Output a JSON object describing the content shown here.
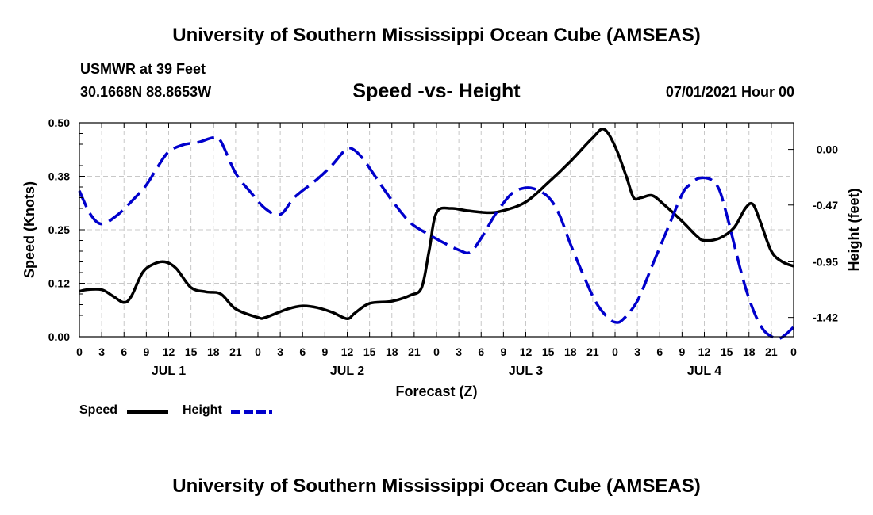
{
  "header": {
    "title": "University of Southern Mississippi Ocean Cube (AMSEAS)",
    "station": "USMWR at 39 Feet",
    "coords": "30.1668N  88.8653W",
    "subtitle": "Speed -vs- Height",
    "datetime": "07/01/2021 Hour 00"
  },
  "footer": {
    "title": "University of Southern Mississippi Ocean Cube (AMSEAS)"
  },
  "legend": {
    "speed_label": "Speed",
    "height_label": "Height"
  },
  "chart_data": {
    "type": "line",
    "title": "Speed -vs- Height",
    "xlabel": "Forecast (Z)",
    "ylabel": "Speed (Knots)",
    "y2label": "Height (feet)",
    "xlim": [
      0,
      96
    ],
    "ylim": [
      0,
      0.5
    ],
    "y2lim": [
      -1.583,
      0.225
    ],
    "x_ticks": [
      {
        "x": 0,
        "label": "0"
      },
      {
        "x": 3,
        "label": "3"
      },
      {
        "x": 6,
        "label": "6"
      },
      {
        "x": 9,
        "label": "9"
      },
      {
        "x": 12,
        "label": "12"
      },
      {
        "x": 15,
        "label": "15"
      },
      {
        "x": 18,
        "label": "18"
      },
      {
        "x": 21,
        "label": "21"
      },
      {
        "x": 24,
        "label": "0"
      },
      {
        "x": 27,
        "label": "3"
      },
      {
        "x": 30,
        "label": "6"
      },
      {
        "x": 33,
        "label": "9"
      },
      {
        "x": 36,
        "label": "12"
      },
      {
        "x": 39,
        "label": "15"
      },
      {
        "x": 42,
        "label": "18"
      },
      {
        "x": 45,
        "label": "21"
      },
      {
        "x": 48,
        "label": "0"
      },
      {
        "x": 51,
        "label": "3"
      },
      {
        "x": 54,
        "label": "6"
      },
      {
        "x": 57,
        "label": "9"
      },
      {
        "x": 60,
        "label": "12"
      },
      {
        "x": 63,
        "label": "15"
      },
      {
        "x": 66,
        "label": "18"
      },
      {
        "x": 69,
        "label": "21"
      },
      {
        "x": 72,
        "label": "0"
      },
      {
        "x": 75,
        "label": "3"
      },
      {
        "x": 78,
        "label": "6"
      },
      {
        "x": 81,
        "label": "9"
      },
      {
        "x": 84,
        "label": "12"
      },
      {
        "x": 87,
        "label": "15"
      },
      {
        "x": 90,
        "label": "18"
      },
      {
        "x": 93,
        "label": "21"
      },
      {
        "x": 96,
        "label": "0"
      }
    ],
    "day_labels": [
      {
        "x": 12,
        "label": "JUL 1"
      },
      {
        "x": 36,
        "label": "JUL 2"
      },
      {
        "x": 60,
        "label": "JUL 3"
      },
      {
        "x": 84,
        "label": "JUL 4"
      }
    ],
    "y_ticks": [
      {
        "value": 0.0,
        "label": "0.00"
      },
      {
        "value": 0.125,
        "label": "0.12"
      },
      {
        "value": 0.25,
        "label": "0.25"
      },
      {
        "value": 0.375,
        "label": "0.38"
      },
      {
        "value": 0.5,
        "label": "0.50"
      }
    ],
    "y2_ticks": [
      {
        "value": 0.0,
        "label": "0.00"
      },
      {
        "value": -0.47,
        "label": "-0.47"
      },
      {
        "value": -0.95,
        "label": "-0.95"
      },
      {
        "value": -1.42,
        "label": "-1.42"
      }
    ],
    "series": [
      {
        "name": "Speed",
        "axis": "left",
        "color": "#000000",
        "dash": "solid",
        "points": [
          [
            0,
            0.106
          ],
          [
            1,
            0.11
          ],
          [
            3,
            0.11
          ],
          [
            4.5,
            0.095
          ],
          [
            6,
            0.08
          ],
          [
            7,
            0.095
          ],
          [
            8.5,
            0.15
          ],
          [
            10,
            0.17
          ],
          [
            11.5,
            0.175
          ],
          [
            13,
            0.16
          ],
          [
            15,
            0.115
          ],
          [
            17,
            0.105
          ],
          [
            19,
            0.1
          ],
          [
            21,
            0.065
          ],
          [
            24,
            0.045
          ],
          [
            25,
            0.045
          ],
          [
            28,
            0.065
          ],
          [
            30,
            0.072
          ],
          [
            32,
            0.068
          ],
          [
            34,
            0.057
          ],
          [
            36,
            0.042
          ],
          [
            37,
            0.055
          ],
          [
            39,
            0.078
          ],
          [
            42,
            0.083
          ],
          [
            44.5,
            0.097
          ],
          [
            46,
            0.115
          ],
          [
            47,
            0.2
          ],
          [
            48,
            0.29
          ],
          [
            50,
            0.3
          ],
          [
            52,
            0.295
          ],
          [
            55,
            0.29
          ],
          [
            57,
            0.295
          ],
          [
            60,
            0.315
          ],
          [
            63,
            0.36
          ],
          [
            66,
            0.41
          ],
          [
            69,
            0.465
          ],
          [
            70.5,
            0.485
          ],
          [
            72,
            0.445
          ],
          [
            73.5,
            0.375
          ],
          [
            74.5,
            0.325
          ],
          [
            75.5,
            0.325
          ],
          [
            77,
            0.33
          ],
          [
            78.5,
            0.31
          ],
          [
            81,
            0.27
          ],
          [
            83,
            0.235
          ],
          [
            84,
            0.225
          ],
          [
            86,
            0.23
          ],
          [
            88,
            0.255
          ],
          [
            89.5,
            0.3
          ],
          [
            90.5,
            0.31
          ],
          [
            91.5,
            0.27
          ],
          [
            93,
            0.2
          ],
          [
            94.5,
            0.175
          ],
          [
            96,
            0.165
          ]
        ]
      },
      {
        "name": "Height",
        "axis": "right",
        "color": "#0000cc",
        "dash": "dashed",
        "points": [
          [
            0,
            -0.35
          ],
          [
            1.5,
            -0.55
          ],
          [
            3,
            -0.63
          ],
          [
            5,
            -0.56
          ],
          [
            7,
            -0.44
          ],
          [
            9,
            -0.3
          ],
          [
            10.5,
            -0.15
          ],
          [
            12,
            -0.02
          ],
          [
            14,
            0.04
          ],
          [
            16,
            0.06
          ],
          [
            18,
            0.1
          ],
          [
            19,
            0.07
          ],
          [
            21,
            -0.2
          ],
          [
            23,
            -0.36
          ],
          [
            25,
            -0.5
          ],
          [
            27,
            -0.55
          ],
          [
            29,
            -0.4
          ],
          [
            32,
            -0.25
          ],
          [
            34,
            -0.13
          ],
          [
            35.5,
            -0.02
          ],
          [
            36.5,
            0.01
          ],
          [
            38,
            -0.07
          ],
          [
            40,
            -0.25
          ],
          [
            42,
            -0.43
          ],
          [
            44.5,
            -0.62
          ],
          [
            47,
            -0.72
          ],
          [
            49,
            -0.79
          ],
          [
            51,
            -0.85
          ],
          [
            52.5,
            -0.87
          ],
          [
            54,
            -0.75
          ],
          [
            56,
            -0.54
          ],
          [
            58,
            -0.38
          ],
          [
            59.5,
            -0.33
          ],
          [
            61,
            -0.33
          ],
          [
            63,
            -0.4
          ],
          [
            64.5,
            -0.55
          ],
          [
            66,
            -0.8
          ],
          [
            68,
            -1.1
          ],
          [
            69.5,
            -1.3
          ],
          [
            71,
            -1.42
          ],
          [
            72,
            -1.46
          ],
          [
            73,
            -1.44
          ],
          [
            75,
            -1.28
          ],
          [
            77,
            -0.98
          ],
          [
            79,
            -0.68
          ],
          [
            81,
            -0.38
          ],
          [
            82,
            -0.3
          ],
          [
            83,
            -0.25
          ],
          [
            84,
            -0.24
          ],
          [
            85,
            -0.26
          ],
          [
            86,
            -0.34
          ],
          [
            87,
            -0.55
          ],
          [
            88,
            -0.8
          ],
          [
            89,
            -1.05
          ],
          [
            90,
            -1.26
          ],
          [
            91,
            -1.42
          ],
          [
            92,
            -1.53
          ],
          [
            93,
            -1.58
          ],
          [
            94,
            -1.6
          ],
          [
            95,
            -1.56
          ],
          [
            96,
            -1.5
          ]
        ]
      }
    ]
  }
}
